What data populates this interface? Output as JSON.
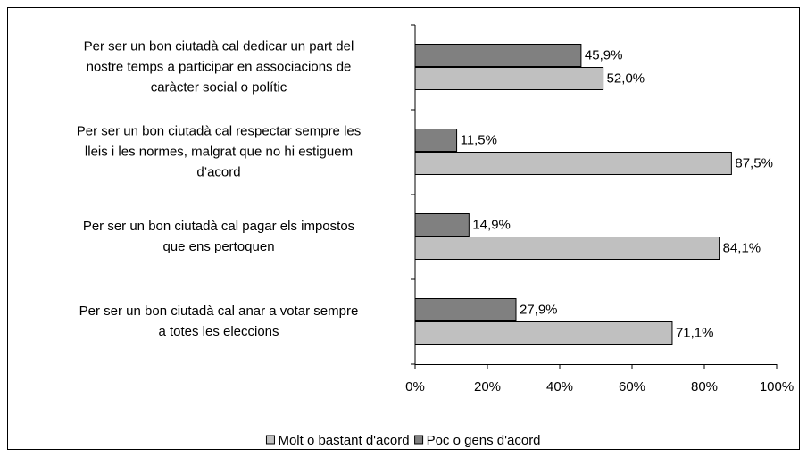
{
  "chart_data": {
    "type": "bar",
    "orientation": "horizontal",
    "categories": [
      [
        "Per ser un bon ciutadà cal dedicar un part del",
        "nostre temps a participar en associacions de",
        "caràcter social o polític"
      ],
      [
        "Per ser un bon ciutadà cal respectar sempre les",
        "lleis i les normes, malgrat que no hi estiguem",
        "d’acord"
      ],
      [
        "Per ser un bon ciutadà cal pagar els impostos",
        "que ens pertoquen"
      ],
      [
        "Per ser un bon ciutadà cal anar a votar sempre",
        "a totes les eleccions"
      ]
    ],
    "series": [
      {
        "name": "Molt o bastant d'acord",
        "color": "#c0c0c0",
        "values": [
          52.0,
          87.5,
          84.1,
          71.1
        ],
        "value_labels": [
          "52,0%",
          "87,5%",
          "84,1%",
          "71,1%"
        ]
      },
      {
        "name": "Poc o gens d'acord",
        "color": "#808080",
        "values": [
          45.9,
          11.5,
          14.9,
          27.9
        ],
        "value_labels": [
          "45,9%",
          "11,5%",
          "14,9%",
          "27,9%"
        ]
      }
    ],
    "xlim": [
      0,
      100
    ],
    "xticks": [
      {
        "value": 0,
        "label": "0%"
      },
      {
        "value": 20,
        "label": "20%"
      },
      {
        "value": 40,
        "label": "40%"
      },
      {
        "value": 60,
        "label": "60%"
      },
      {
        "value": 80,
        "label": "80%"
      },
      {
        "value": 100,
        "label": "100%"
      }
    ],
    "legend": "bottom"
  }
}
